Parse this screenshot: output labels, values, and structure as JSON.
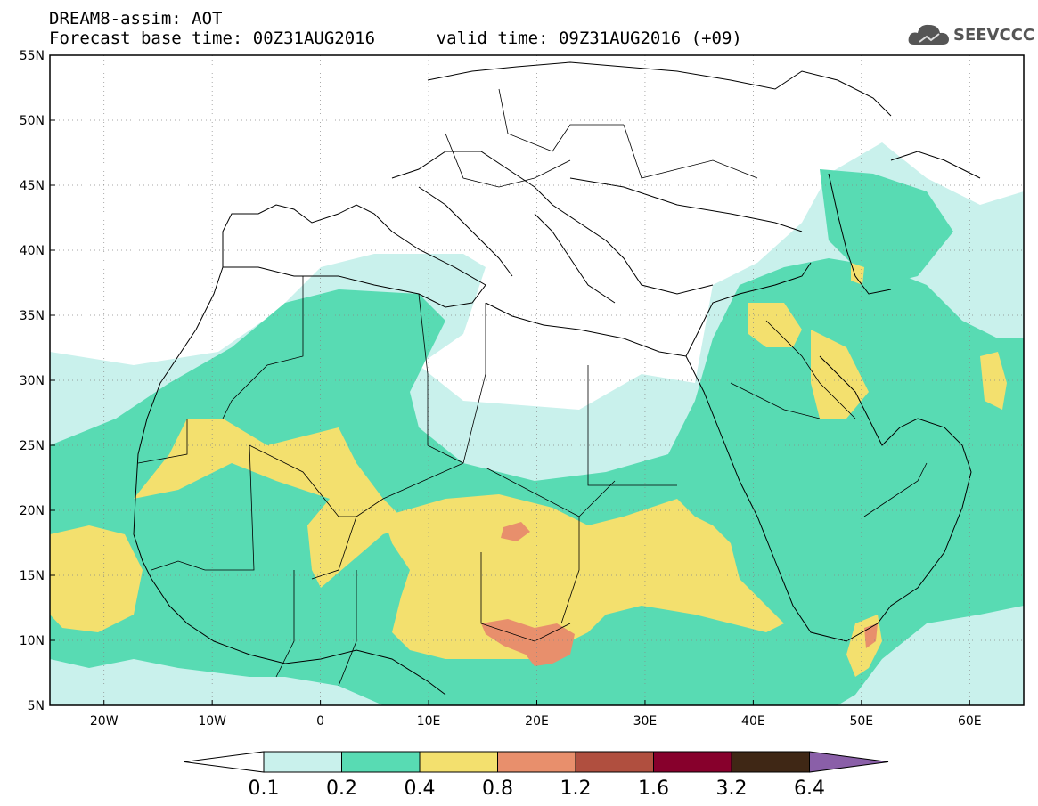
{
  "header": {
    "line1": "DREAM8-assim: AOT",
    "forecast_base": "Forecast base time: 00Z31AUG2016",
    "valid_time": "valid time: 09Z31AUG2016 (+09)"
  },
  "logo": {
    "text": "SEEVCCC",
    "icon": "cloud-icon"
  },
  "map": {
    "lon_range": [
      -25,
      65
    ],
    "lat_range": [
      5,
      55
    ],
    "lat_labels": [
      "5N",
      "10N",
      "15N",
      "20N",
      "25N",
      "30N",
      "35N",
      "40N",
      "45N",
      "50N",
      "55N"
    ],
    "lat_values": [
      5,
      10,
      15,
      20,
      25,
      30,
      35,
      40,
      45,
      50,
      55
    ],
    "lon_labels": [
      "20W",
      "10W",
      "0",
      "10E",
      "20E",
      "30E",
      "40E",
      "50E",
      "60E"
    ],
    "lon_values": [
      -20,
      -10,
      0,
      10,
      20,
      30,
      40,
      50,
      60
    ],
    "grid": "dotted"
  },
  "colorbar": {
    "labels": [
      "0.1",
      "0.2",
      "0.4",
      "0.8",
      "1.2",
      "1.6",
      "3.2",
      "6.4"
    ],
    "colors": [
      "#ffffff",
      "#c9f1ec",
      "#58dbb3",
      "#f3e06e",
      "#e88f6c",
      "#b04f3f",
      "#87002c",
      "#3f2715",
      "#8a5fa8"
    ]
  }
}
